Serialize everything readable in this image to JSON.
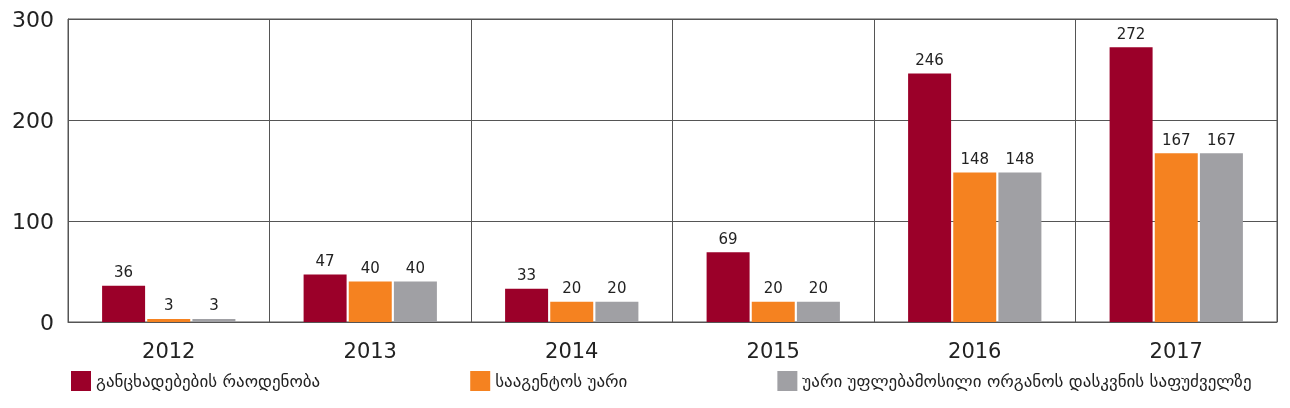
{
  "chart_data": {
    "type": "bar",
    "categories": [
      "2012",
      "2013",
      "2014",
      "2015",
      "2016",
      "2017"
    ],
    "series": [
      {
        "name": "განცხადებების რაოდენობა",
        "color": "#9b0029",
        "values": [
          36,
          47,
          33,
          69,
          246,
          272
        ]
      },
      {
        "name": "სააგენტოს უარი",
        "color": "#f58220",
        "values": [
          3,
          40,
          20,
          20,
          148,
          167
        ]
      },
      {
        "name": "უარი უფლებამოსილი ორგანოს დასკვნის საფუძველზე",
        "color": "#a0a0a4",
        "values": [
          3,
          40,
          20,
          20,
          148,
          167
        ]
      }
    ],
    "ylim": [
      0,
      300
    ],
    "yticks": [
      0,
      100,
      200,
      300
    ],
    "grid": true,
    "legend": "bottom left",
    "data_labels": true
  }
}
